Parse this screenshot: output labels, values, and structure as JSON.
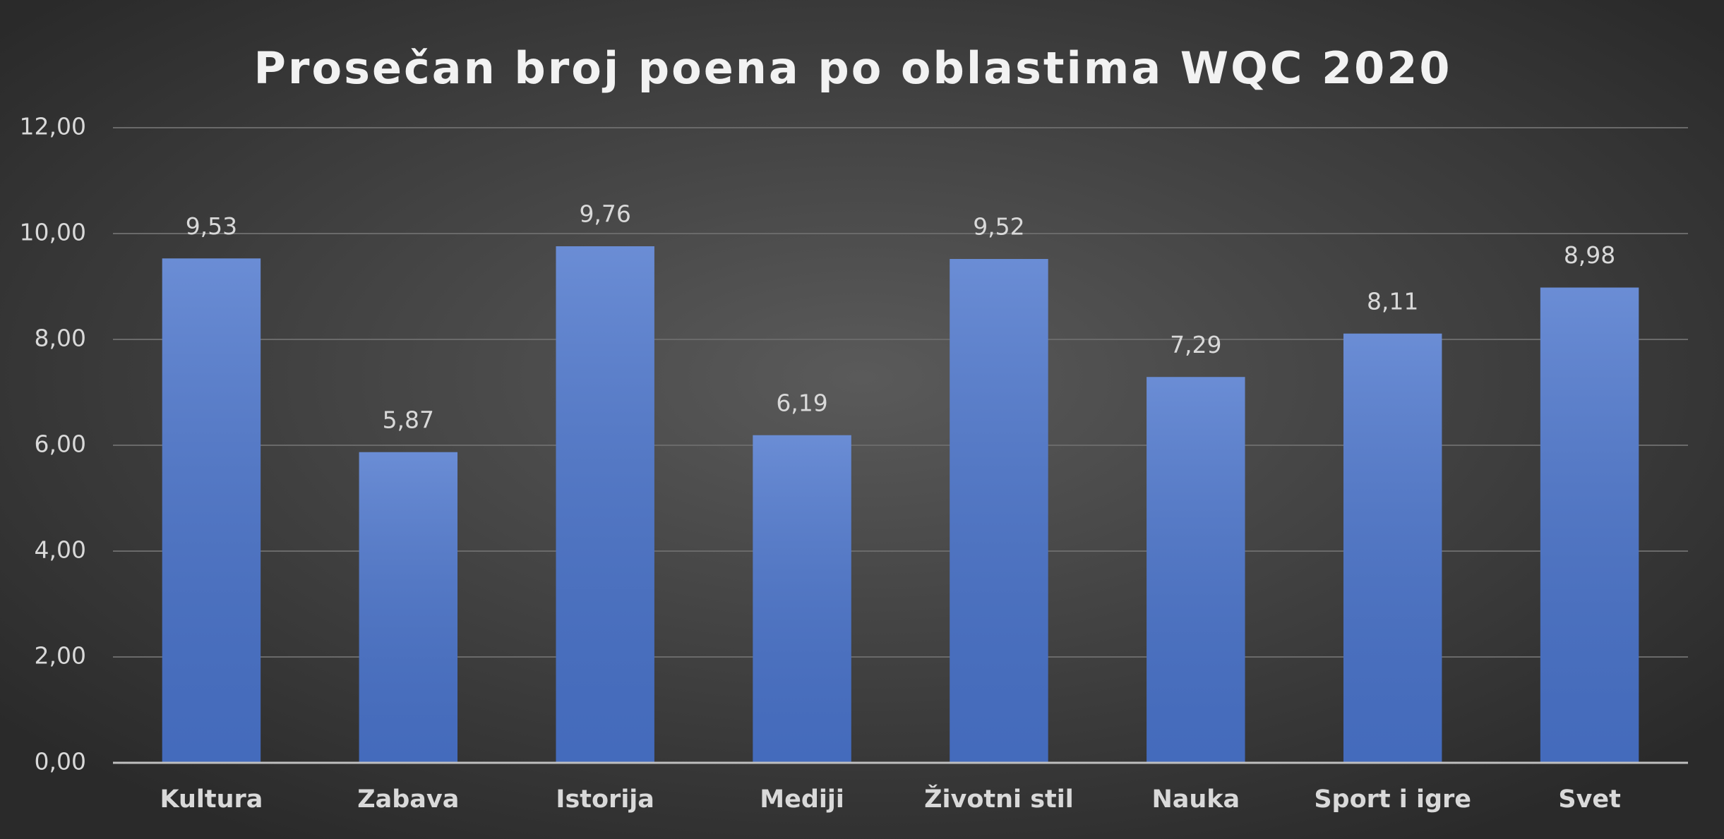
{
  "chart_data": {
    "type": "bar",
    "title": "Prosečan broj poena po oblastima WQC 2020",
    "categories": [
      "Kultura",
      "Zabava",
      "Istorija",
      "Mediji",
      "Životni stil",
      "Nauka",
      "Sport i igre",
      "Svet"
    ],
    "values": [
      9.53,
      5.87,
      9.76,
      6.19,
      9.52,
      7.29,
      8.11,
      8.98
    ],
    "value_labels": [
      "9,53",
      "5,87",
      "9,76",
      "6,19",
      "9,52",
      "7,29",
      "8,11",
      "8,98"
    ],
    "color": "#4a74cc",
    "ylim": [
      0,
      12
    ],
    "yticks": [
      {
        "value": 0,
        "label": "0,00"
      },
      {
        "value": 2,
        "label": "2,00"
      },
      {
        "value": 4,
        "label": "4,00"
      },
      {
        "value": 6,
        "label": "6,00"
      },
      {
        "value": 8,
        "label": "8,00"
      },
      {
        "value": 10,
        "label": "10,00"
      },
      {
        "value": 12,
        "label": "12,00"
      }
    ],
    "grid": true
  }
}
